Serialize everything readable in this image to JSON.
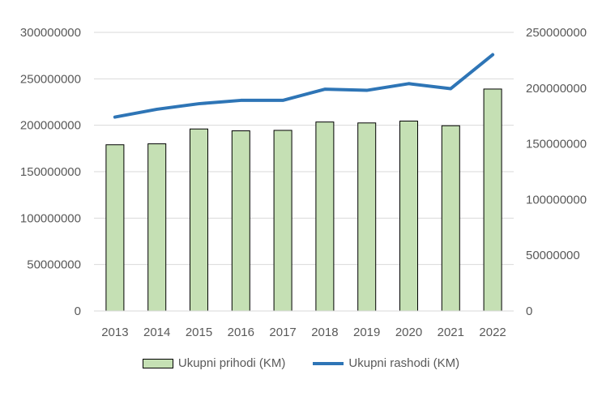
{
  "chart_data": {
    "type": "bar",
    "title": "",
    "categories": [
      "2013",
      "2014",
      "2015",
      "2016",
      "2017",
      "2018",
      "2019",
      "2020",
      "2021",
      "2022"
    ],
    "series": [
      {
        "name": "Ukupni prihodi (KM)",
        "type": "bar",
        "axis": "left",
        "color": "#c5e0b4",
        "values": [
          179000000,
          180000000,
          196000000,
          194000000,
          194500000,
          203500000,
          202500000,
          204500000,
          199500000,
          239000000
        ]
      },
      {
        "name": "Ukupni rashodi (KM)",
        "type": "line",
        "axis": "right",
        "color": "#2e75b6",
        "values": [
          174000000,
          181000000,
          186000000,
          189000000,
          189000000,
          199000000,
          198000000,
          204000000,
          199500000,
          230000000
        ]
      }
    ],
    "y_left": {
      "ylim": [
        0,
        300000000
      ],
      "ticks": [
        "0",
        "50000000",
        "100000000",
        "150000000",
        "200000000",
        "250000000",
        "300000000"
      ]
    },
    "y_right": {
      "ylim": [
        0,
        250000000
      ],
      "ticks": [
        "0",
        "50000000",
        "100000000",
        "150000000",
        "200000000",
        "250000000"
      ]
    },
    "grid": true,
    "legend": "bottom-center",
    "gridline_color": "#d9d9d9"
  }
}
